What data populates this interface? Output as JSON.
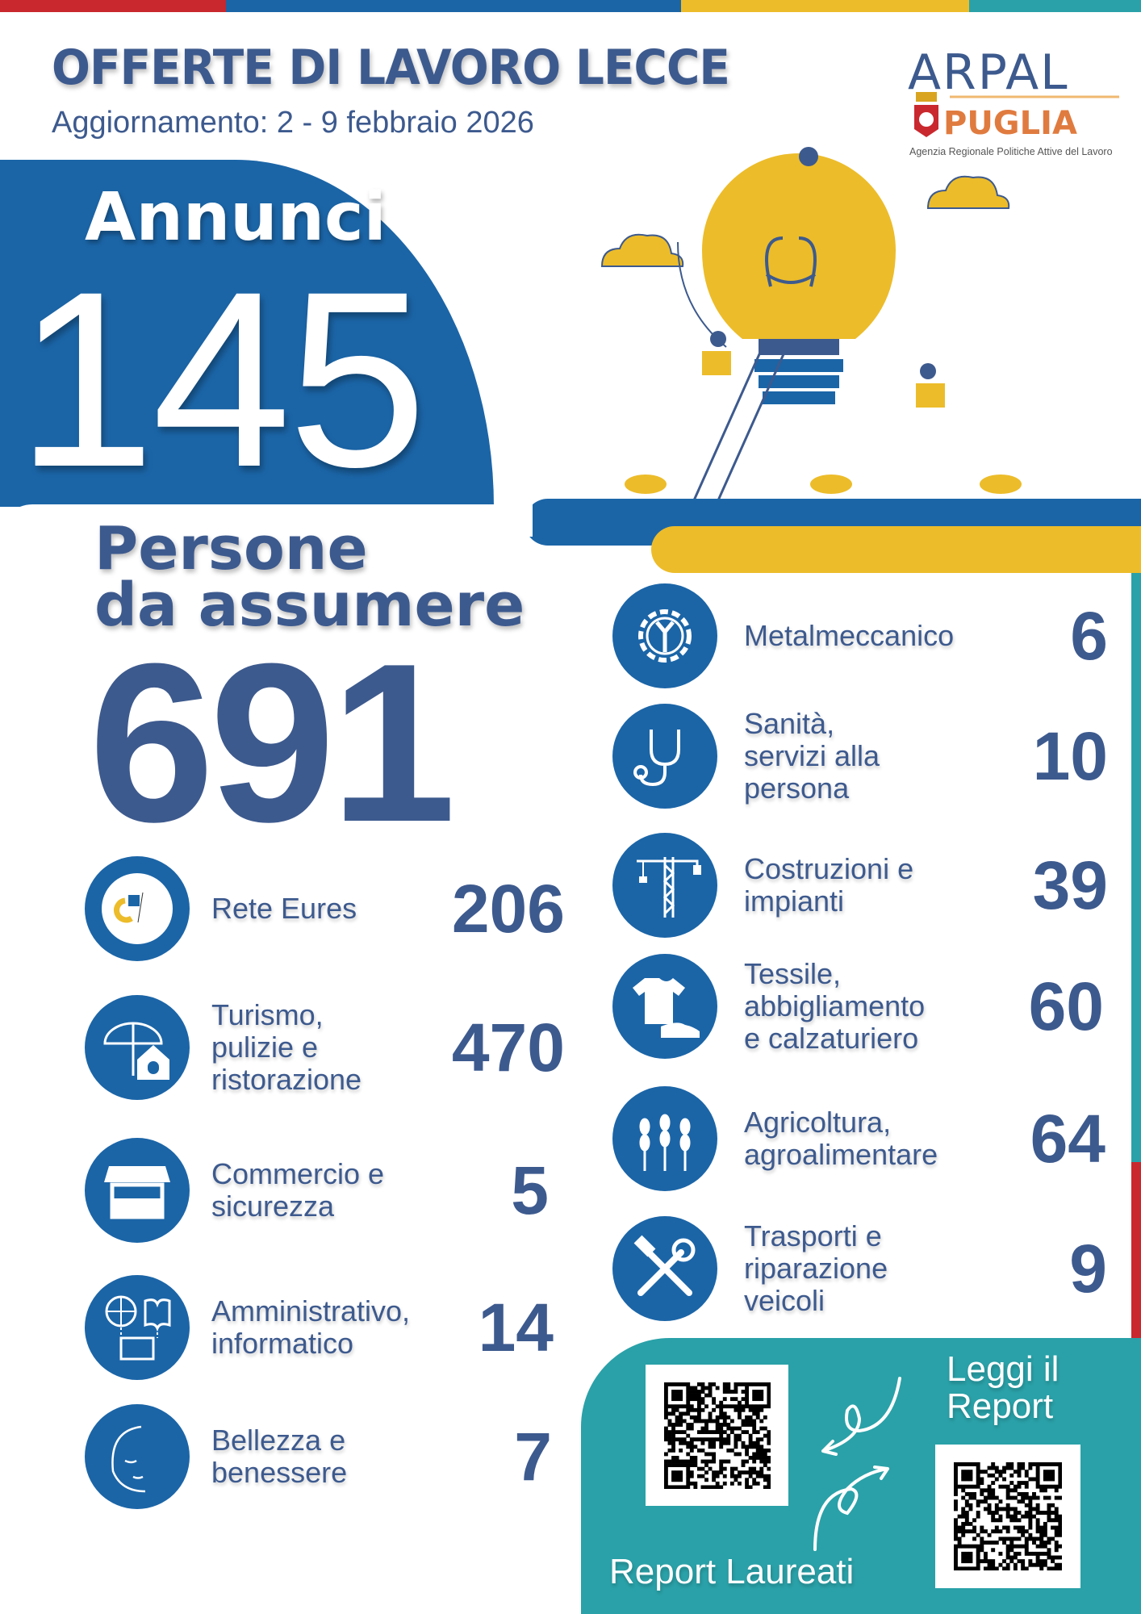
{
  "colors": {
    "red": "#c9282e",
    "blue": "#1b65a7",
    "yellow": "#ecbc2a",
    "teal": "#2aa1a8",
    "text": "#3d5a8e",
    "orange": "#e07b3f"
  },
  "header": {
    "title": "OFFERTE DI LAVORO LECCE",
    "subtitle": "Aggiornamento: 2 - 9 febbraio 2026"
  },
  "logo": {
    "line1": "ARPAL",
    "line2": "PUGLIA",
    "tagline": "Agenzia Regionale Politiche Attive del Lavoro"
  },
  "annunci": {
    "label": "Annunci",
    "value": "145"
  },
  "persone": {
    "label_line1": "Persone",
    "label_line2": "da assumere",
    "value": "691"
  },
  "left_categories": [
    {
      "icon": "eures-logo-icon",
      "label": [
        "Rete Eures"
      ],
      "value": "206"
    },
    {
      "icon": "umbrella-house-icon",
      "label": [
        "Turismo,",
        "pulizie e",
        "ristorazione"
      ],
      "value": "470"
    },
    {
      "icon": "market-stall-icon",
      "label": [
        "Commercio e",
        "sicurezza"
      ],
      "value": "5"
    },
    {
      "icon": "globe-book-icon",
      "label": [
        "Amministrativo,",
        "informatico"
      ],
      "value": "14"
    },
    {
      "icon": "face-icon",
      "label": [
        "Bellezza e",
        "benessere"
      ],
      "value": "7"
    }
  ],
  "right_categories": [
    {
      "icon": "gear-wrench-icon",
      "label": [
        "Metalmeccanico"
      ],
      "value": "6"
    },
    {
      "icon": "stethoscope-icon",
      "label": [
        "Sanità,",
        "servizi alla",
        "persona"
      ],
      "value": "10"
    },
    {
      "icon": "crane-icon",
      "label": [
        "Costruzioni e",
        "impianti"
      ],
      "value": "39"
    },
    {
      "icon": "tshirt-shoe-icon",
      "label": [
        "Tessile,",
        "abbigliamento",
        "e calzaturiero"
      ],
      "value": "60"
    },
    {
      "icon": "wheat-icon",
      "label": [
        "Agricoltura,",
        "agroalimentare"
      ],
      "value": "64"
    },
    {
      "icon": "tools-icon",
      "label": [
        "Trasporti e",
        "riparazione",
        "veicoli"
      ],
      "value": "9"
    }
  ],
  "reports": {
    "read_report_line1": "Leggi il",
    "read_report_line2": "Report",
    "graduates_report": "Report Laureati"
  }
}
